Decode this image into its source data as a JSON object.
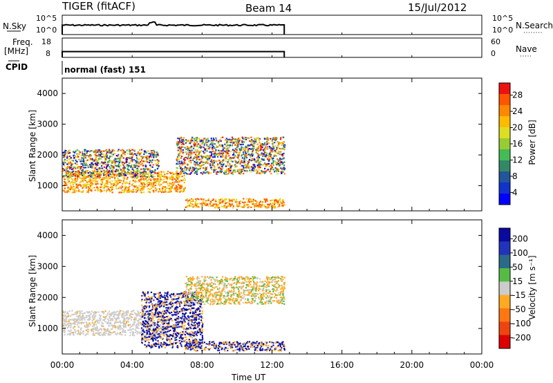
{
  "header": {
    "station": "TIGER (fitACF)",
    "beam": "Beam 14",
    "date": "15/Jul/2012"
  },
  "sky_panel": {
    "left_label": "N.Sky",
    "left_ticks": [
      "10^5",
      "10^0"
    ],
    "right_ticks": [
      "10^5",
      "10^0"
    ],
    "right_label": "N.Search"
  },
  "freq_panel": {
    "left_label_1": "Freq.",
    "left_label_2": "[MHz]",
    "left_ticks": [
      "18",
      "8"
    ],
    "right_ticks": [
      "60",
      "0"
    ],
    "right_label": "Nave"
  },
  "cpid": {
    "label": "CPID",
    "value": "normal (fast) 151"
  },
  "time_axis": {
    "label": "Time UT",
    "ticks": [
      "00:00",
      "04:00",
      "08:00",
      "12:00",
      "16:00",
      "20:00",
      "00:00"
    ]
  },
  "power_colorbar": {
    "label": "Power [dB]",
    "ticks": [
      "28",
      "24",
      "20",
      "16",
      "12",
      "8",
      "4"
    ],
    "colors": [
      "#ee1111",
      "#ff5500",
      "#ff8800",
      "#ffbb00",
      "#dddd22",
      "#99cc33",
      "#44bb55",
      "#338866",
      "#225599",
      "#1133cc",
      "#0000ff"
    ]
  },
  "velocity_colorbar": {
    "label": "Velocity [m s⁻¹]",
    "ticks": [
      "200",
      "100",
      "50",
      "15",
      "-15",
      "-50",
      "-100",
      "-200"
    ],
    "colors": [
      "#0a0aa0",
      "#2233bb",
      "#2a6a88",
      "#55bb44",
      "#cccccc",
      "#ffaa22",
      "#ff7711",
      "#ee4411",
      "#dd0000"
    ]
  },
  "chart_data": [
    {
      "type": "line",
      "name": "N.Sky / N.Search",
      "ylim_labels": [
        "10^0",
        "10^5"
      ],
      "x": [
        "00:00",
        "01:00",
        "02:00",
        "03:00",
        "04:00",
        "05:00",
        "06:00",
        "07:00",
        "08:00",
        "09:00",
        "10:00",
        "11:00",
        "12:00",
        "12:40"
      ],
      "approx_level_fraction": 0.2
    },
    {
      "type": "line",
      "name": "Freq. / Nave",
      "ylim": [
        8,
        18
      ],
      "x": [
        "00:00",
        "12:40"
      ],
      "approx_level_fraction": 0.2
    },
    {
      "type": "heatmap",
      "name": "Power",
      "ylabel": "Slant Range [km]",
      "xlabel": "Time UT",
      "ylim": [
        180,
        4500
      ],
      "yticks": [
        1000,
        2000,
        3000,
        4000
      ],
      "xlim_hours": [
        0,
        24
      ],
      "data_end_hour": 12.7,
      "regions": [
        {
          "t0": 0.0,
          "t1": 7.0,
          "r0": 800,
          "r1": 1500,
          "level": "high"
        },
        {
          "t0": 0.0,
          "t1": 5.5,
          "r0": 1300,
          "r1": 2200,
          "level": "mixed"
        },
        {
          "t0": 6.5,
          "t1": 12.7,
          "r0": 1400,
          "r1": 2600,
          "level": "mixed"
        },
        {
          "t0": 7.0,
          "t1": 12.7,
          "r0": 300,
          "r1": 600,
          "level": "high"
        }
      ]
    },
    {
      "type": "heatmap",
      "name": "Velocity",
      "ylabel": "Slant Range [km]",
      "xlabel": "Time UT",
      "ylim": [
        180,
        4500
      ],
      "yticks": [
        1000,
        2000,
        3000,
        4000
      ],
      "xlim_hours": [
        0,
        24
      ],
      "data_end_hour": 12.7,
      "regions": [
        {
          "t0": 0.0,
          "t1": 6.0,
          "r0": 800,
          "r1": 1600,
          "level": "near-zero"
        },
        {
          "t0": 4.5,
          "t1": 8.0,
          "r0": 400,
          "r1": 2200,
          "level": "positive"
        },
        {
          "t0": 7.0,
          "t1": 12.7,
          "r0": 1800,
          "r1": 2700,
          "level": "negative"
        },
        {
          "t0": 7.0,
          "t1": 12.7,
          "r0": 300,
          "r1": 600,
          "level": "positive"
        }
      ]
    }
  ]
}
